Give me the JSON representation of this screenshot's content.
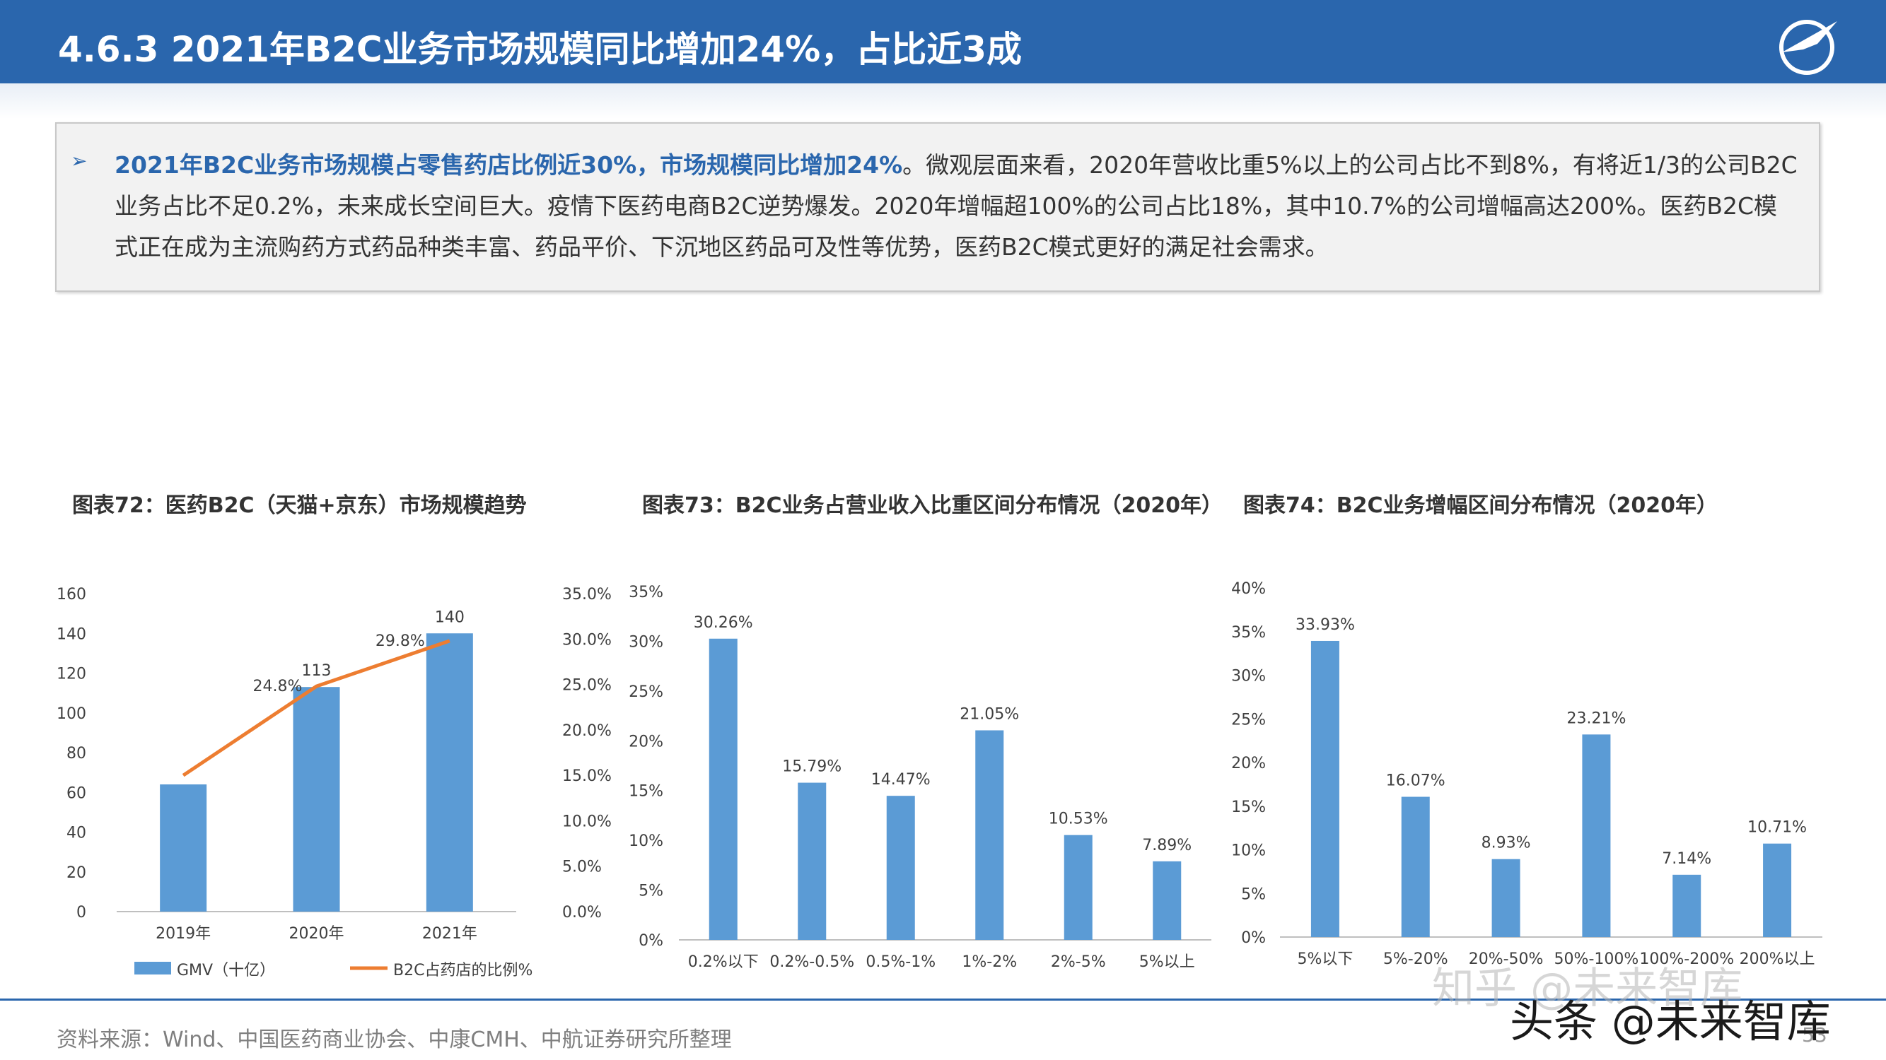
{
  "header": {
    "title": "4.6.3  2021年B2C业务市场规模同比增加24%，占比近3成",
    "logo_text": "AVIC"
  },
  "summary": {
    "bullet": "➢",
    "highlight": "2021年B2C业务市场规模占零售药店比例近30%，市场规模同比增加24%",
    "body": "。微观层面来看，2020年营收比重5%以上的公司占比不到8%，有将近1/3的公司B2C业务占比不足0.2%，未来成长空间巨大。疫情下医药电商B2C逆势爆发。2020年增幅超100%的公司占比18%，其中10.7%的公司增幅高达200%。医药B2C模式正在成为主流购药方式药品种类丰富、药品平价、下沉地区药品可及性等优势，医药B2C模式更好的满足社会需求。"
  },
  "chart_titles": {
    "c72": "图表72：医药B2C（天猫+京东）市场规模趋势",
    "c73": "图表73：B2C业务占营业收入比重区间分布情况（2020年）",
    "c74": "图表74：B2C业务增幅区间分布情况（2020年）"
  },
  "chart_data": [
    {
      "type": "bar",
      "categories": [
        "2019年",
        "2020年",
        "2021年"
      ],
      "series": [
        {
          "name": "GMV（十亿）",
          "type": "bar",
          "axis": "left",
          "values": [
            64,
            113,
            140
          ],
          "data_labels": [
            "",
            "113",
            "140"
          ]
        },
        {
          "name": "B2C占药店的比例%",
          "type": "line",
          "axis": "right",
          "values": [
            15.0,
            24.8,
            29.8
          ],
          "data_labels": [
            "",
            "24.8%",
            "29.8%"
          ]
        }
      ],
      "ylim": [
        0,
        160
      ],
      "yticks": [
        "0",
        "20",
        "40",
        "60",
        "80",
        "100",
        "120",
        "140",
        "160"
      ],
      "y2lim": [
        0,
        35
      ],
      "y2ticks": [
        "0.0%",
        "5.0%",
        "10.0%",
        "15.0%",
        "20.0%",
        "25.0%",
        "30.0%",
        "35.0%"
      ],
      "bar_color": "#5b9bd5",
      "line_color": "#ed7d31",
      "legend": "bottom"
    },
    {
      "type": "bar",
      "categories": [
        "0.2%以下",
        "0.2%-0.5%",
        "0.5%-1%",
        "1%-2%",
        "2%-5%",
        "5%以上"
      ],
      "values": [
        30.26,
        15.79,
        14.47,
        21.05,
        10.53,
        7.89
      ],
      "data_labels": [
        "30.26%",
        "15.79%",
        "14.47%",
        "21.05%",
        "10.53%",
        "7.89%"
      ],
      "ylim": [
        0,
        35
      ],
      "yticks": [
        "0%",
        "5%",
        "10%",
        "15%",
        "20%",
        "25%",
        "30%",
        "35%"
      ],
      "bar_color": "#5b9bd5"
    },
    {
      "type": "bar",
      "categories": [
        "5%以下",
        "5%-20%",
        "20%-50%",
        "50%-100%",
        "100%-200%",
        "200%以上"
      ],
      "values": [
        33.93,
        16.07,
        8.93,
        23.21,
        7.14,
        10.71
      ],
      "data_labels": [
        "33.93%",
        "16.07%",
        "8.93%",
        "23.21%",
        "7.14%",
        "10.71%"
      ],
      "ylim": [
        0,
        40
      ],
      "yticks": [
        "0%",
        "5%",
        "10%",
        "15%",
        "20%",
        "25%",
        "30%",
        "35%",
        "40%"
      ],
      "bar_color": "#5b9bd5"
    }
  ],
  "footer": {
    "source": "资料来源：Wind、中国医药商业协会、中康CMH、中航证券研究所整理",
    "page": "53",
    "watermark_1": "知乎 @未来智库",
    "watermark_2": "头条 @未来智库"
  }
}
